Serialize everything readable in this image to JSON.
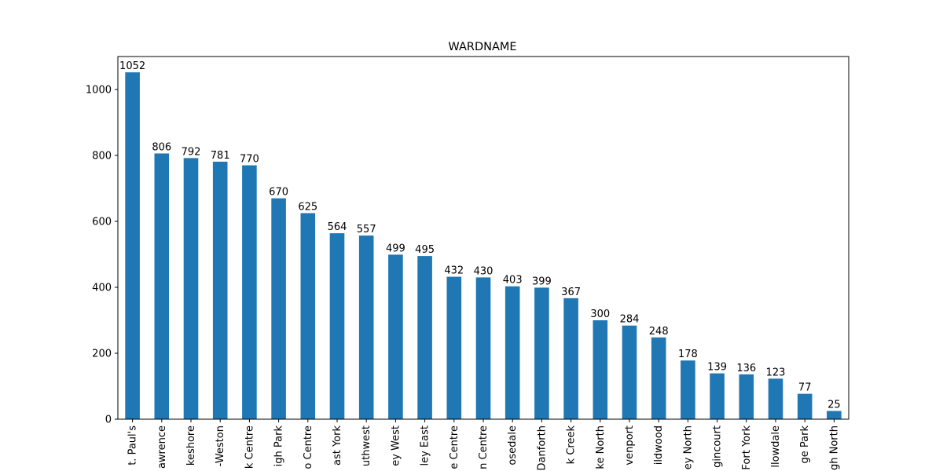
{
  "chart_data": {
    "type": "bar",
    "title": "WARDNAME",
    "xlabel": "",
    "ylabel": "",
    "ylim": [
      0,
      1100
    ],
    "yticks": [
      0,
      200,
      400,
      600,
      800,
      1000
    ],
    "grid": false,
    "bar_color": "#1f77b4",
    "categories": [
      "St. Paul's",
      "...awrence",
      "...keshore",
      "...-Weston",
      "...k Centre",
      "...igh Park",
      "...o Centre",
      "...ast York",
      "...uthwest",
      "...ey West",
      "...ley East",
      "...e Centre",
      "...n Centre",
      "...osedale",
      "...Danforth",
      "...k Creek",
      "...e North",
      "...venport",
      "...ildwood",
      "...ey North",
      "...gincourt",
      "...Fort York",
      "...llowdale",
      "...ge Park",
      "...h North"
    ],
    "category_labels_shown": [
      "t. Paul's",
      "awrence",
      "keshore",
      "-Weston",
      "k Centre",
      "igh Park",
      "o Centre",
      "ast York",
      "uthwest",
      "ey West",
      "ley East",
      "e Centre",
      "n Centre",
      "osedale",
      "Danforth",
      "k Creek",
      "ke North",
      "venport",
      "ildwood",
      "ey North",
      "gincourt",
      "Fort York",
      "llowdale",
      "ge Park",
      "gh North"
    ],
    "values": [
      1052,
      806,
      792,
      781,
      770,
      670,
      625,
      564,
      557,
      499,
      495,
      432,
      430,
      403,
      399,
      367,
      300,
      284,
      248,
      178,
      139,
      136,
      123,
      77,
      25
    ]
  }
}
